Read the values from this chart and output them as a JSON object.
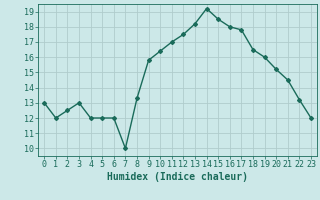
{
  "x": [
    0,
    1,
    2,
    3,
    4,
    5,
    6,
    7,
    8,
    9,
    10,
    11,
    12,
    13,
    14,
    15,
    16,
    17,
    18,
    19,
    20,
    21,
    22,
    23
  ],
  "y": [
    13,
    12,
    12.5,
    13,
    12,
    12,
    12,
    10,
    13.3,
    15.8,
    16.4,
    17,
    17.5,
    18.2,
    19.2,
    18.5,
    18,
    17.8,
    16.5,
    16,
    15.2,
    14.5,
    13.2,
    12
  ],
  "line_color": "#1a6b5a",
  "marker": "D",
  "marker_size": 2,
  "bg_color": "#cce8e8",
  "grid_color": "#b0cccc",
  "xlabel": "Humidex (Indice chaleur)",
  "ylim": [
    9.5,
    19.5
  ],
  "xlim": [
    -0.5,
    23.5
  ],
  "yticks": [
    10,
    11,
    12,
    13,
    14,
    15,
    16,
    17,
    18,
    19
  ],
  "xticks": [
    0,
    1,
    2,
    3,
    4,
    5,
    6,
    7,
    8,
    9,
    10,
    11,
    12,
    13,
    14,
    15,
    16,
    17,
    18,
    19,
    20,
    21,
    22,
    23
  ],
  "tick_color": "#1a6b5a",
  "label_fontsize": 6,
  "xlabel_fontsize": 7,
  "line_width": 1.0
}
